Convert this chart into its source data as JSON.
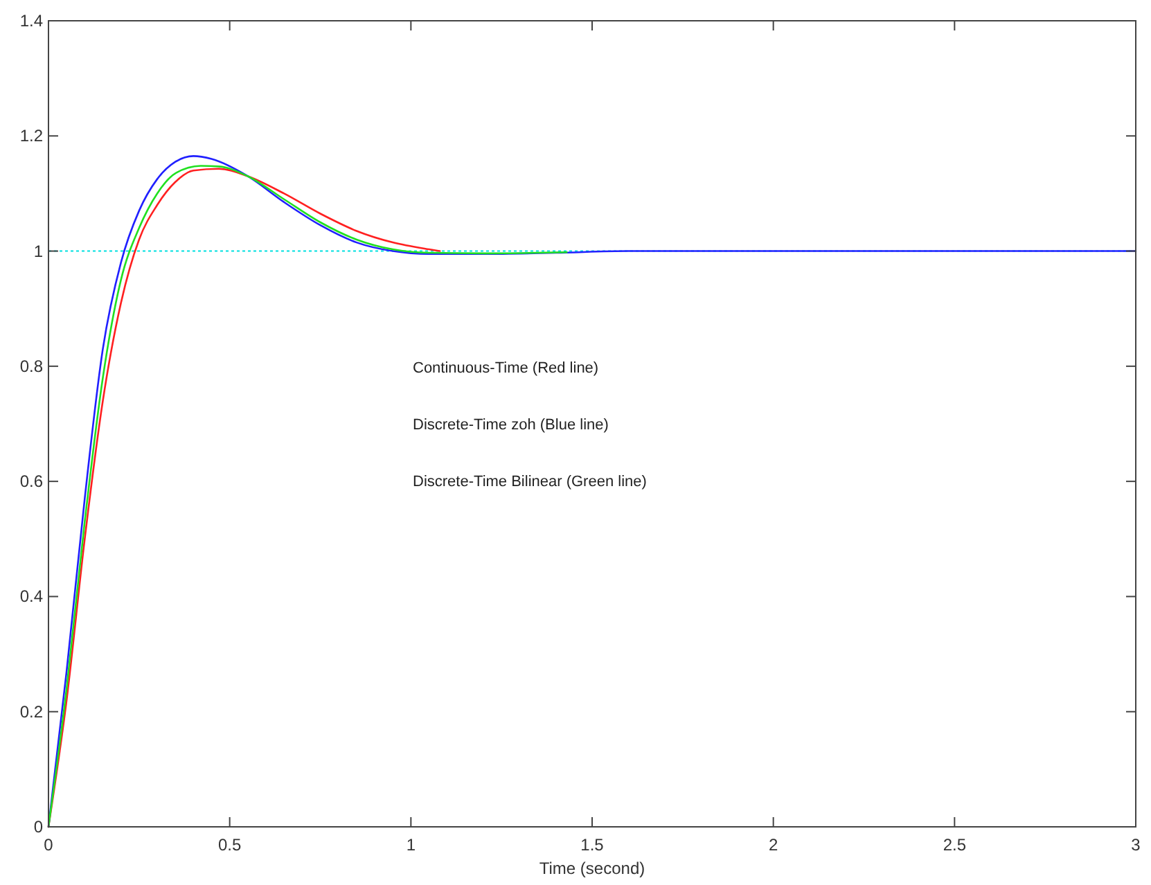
{
  "chart_data": {
    "type": "line",
    "xlabel": "Time (second)",
    "xlim": [
      0,
      3
    ],
    "xticks": [
      0,
      0.5,
      1,
      1.5,
      2,
      2.5,
      3
    ],
    "ylim": [
      0,
      1.4
    ],
    "yticks": [
      0,
      0.2,
      0.4,
      0.6,
      0.8,
      1,
      1.2,
      1.4
    ],
    "grid": false,
    "line_style": "solid",
    "series": [
      {
        "color": "#ff2020",
        "x": [
          0,
          0.05,
          0.1,
          0.15,
          0.2,
          0.25,
          0.3,
          0.35,
          0.4,
          0.47,
          0.55,
          0.65,
          0.75,
          0.85,
          0.95,
          1.05,
          1.08
        ],
        "values": [
          0,
          0.22,
          0.5,
          0.74,
          0.91,
          1.02,
          1.08,
          1.12,
          1.14,
          1.143,
          1.13,
          1.1,
          1.065,
          1.035,
          1.015,
          1.003,
          1.0
        ]
      },
      {
        "color": "#2020ff",
        "x": [
          0,
          0.05,
          0.1,
          0.15,
          0.2,
          0.25,
          0.3,
          0.35,
          0.4,
          0.45,
          0.55,
          0.65,
          0.75,
          0.85,
          0.95,
          1.05,
          1.2,
          1.4,
          1.6,
          3
        ],
        "values": [
          0,
          0.27,
          0.57,
          0.83,
          0.98,
          1.07,
          1.125,
          1.155,
          1.165,
          1.16,
          1.13,
          1.085,
          1.045,
          1.015,
          1.0,
          0.995,
          0.995,
          0.997,
          1.0,
          1.0
        ]
      },
      {
        "color": "#20e020",
        "x": [
          0,
          0.05,
          0.1,
          0.15,
          0.2,
          0.25,
          0.3,
          0.35,
          0.42,
          0.47,
          0.55,
          0.65,
          0.75,
          0.85,
          0.95,
          1.05,
          1.2,
          1.43
        ],
        "values": [
          0,
          0.24,
          0.53,
          0.78,
          0.95,
          1.04,
          1.1,
          1.135,
          1.148,
          1.147,
          1.13,
          1.09,
          1.05,
          1.02,
          1.003,
          0.997,
          0.996,
          0.998
        ]
      }
    ],
    "ref_lines": [
      {
        "axis": "y",
        "value": 1,
        "color": "#00e0e0",
        "line_style": "dotted"
      }
    ],
    "annotations": [
      "Continuous-Time (Red line)",
      "Discrete-Time zoh (Blue line)",
      "Discrete-Time Bilinear (Green line)"
    ]
  }
}
